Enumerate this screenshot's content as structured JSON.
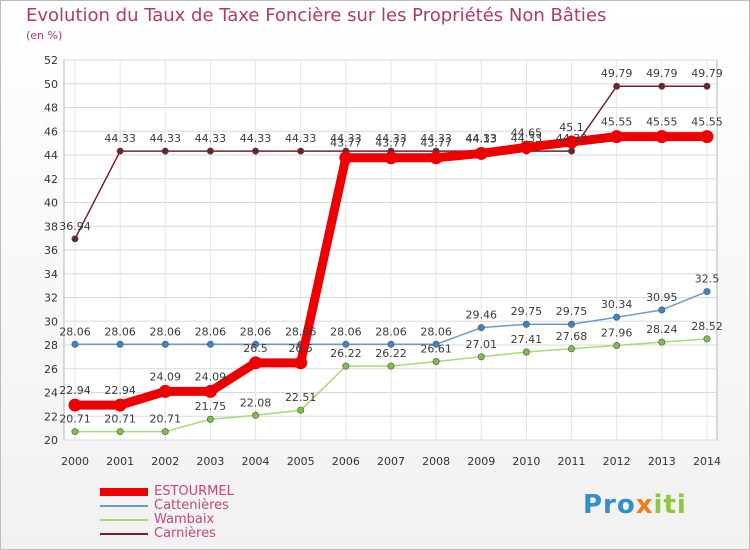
{
  "title": "Evolution du Taux de Taxe Foncière sur les Propriétés Non Bâties",
  "unit_label": "(en %)",
  "logo": {
    "text": "Proxiti",
    "part1": "Pro",
    "part2": "x",
    "part3": "iti"
  },
  "chart_data": {
    "type": "line",
    "title": "Evolution du Taux de Taxe Foncière sur les Propriétés Non Bâties",
    "ylabel": "(en %)",
    "xlabel": "",
    "ylim": [
      20,
      52
    ],
    "yticks": [
      20,
      22,
      24,
      26,
      28,
      30,
      32,
      34,
      36,
      38,
      40,
      42,
      44,
      46,
      48,
      50,
      52
    ],
    "x": [
      "2000",
      "2001",
      "2002",
      "2003",
      "2004",
      "2005",
      "2006",
      "2007",
      "2008",
      "2009",
      "2010",
      "2011",
      "2012",
      "2013",
      "2014"
    ],
    "grid": true,
    "series": [
      {
        "name": "Carnières",
        "color": "#6e2229",
        "dot": "#6e2229",
        "values": [
          36.94,
          44.33,
          44.33,
          44.33,
          44.33,
          44.33,
          44.33,
          44.33,
          44.33,
          44.33,
          44.33,
          44.33,
          49.79,
          49.79,
          49.79
        ],
        "labels": [
          "36.94",
          "44.33",
          "44.33",
          "44.33",
          "44.33",
          "44.33",
          "44.33",
          "44.33",
          "44.33",
          "44.33",
          "44.33",
          "44.33",
          "49.79",
          "49.79",
          "49.79"
        ]
      },
      {
        "name": "Cattenières",
        "color": "#6a9cc7",
        "dot": "#3d85c6",
        "values": [
          28.06,
          28.06,
          28.06,
          28.06,
          28.06,
          28.06,
          28.06,
          28.06,
          28.06,
          29.46,
          29.75,
          29.75,
          30.34,
          30.95,
          32.5
        ],
        "labels": [
          "28.06",
          "28.06",
          "28.06",
          "28.06",
          "28.06",
          "28.06",
          "28.06",
          "28.06",
          "28.06",
          "29.46",
          "29.75",
          "29.75",
          "30.34",
          "30.95",
          "32.5"
        ]
      },
      {
        "name": "Wambaix",
        "color": "#a8d878",
        "dot": "#7cc242",
        "values": [
          20.71,
          20.71,
          20.71,
          21.75,
          22.08,
          22.51,
          26.22,
          26.22,
          26.61,
          27.01,
          27.41,
          27.68,
          27.96,
          28.24,
          28.52
        ],
        "labels": [
          "20.71",
          "20.71",
          "20.71",
          "21.75",
          "22.08",
          "22.51",
          "26.22",
          "26.22",
          "26.61",
          "27.01",
          "27.41",
          "27.68",
          "27.96",
          "28.24",
          "28.52"
        ]
      },
      {
        "name": "ESTOURMEL",
        "color": "#ee0000",
        "dot": "#ee0000",
        "thick": true,
        "values": [
          22.94,
          22.94,
          24.09,
          24.09,
          26.5,
          26.5,
          43.77,
          43.77,
          43.77,
          44.13,
          44.65,
          45.1,
          45.55,
          45.55,
          45.55
        ],
        "labels": [
          "22.94",
          "22.94",
          "24.09",
          "24.09",
          "26.5",
          "26.5",
          "43.77",
          "43.77",
          "43.77",
          "44.13",
          "44.65",
          "45.1",
          "45.55",
          "45.55",
          "45.55"
        ]
      }
    ],
    "legend_order": [
      "ESTOURMEL",
      "Cattenières",
      "Wambaix",
      "Carnières"
    ],
    "legend_position": "bottom-left"
  }
}
